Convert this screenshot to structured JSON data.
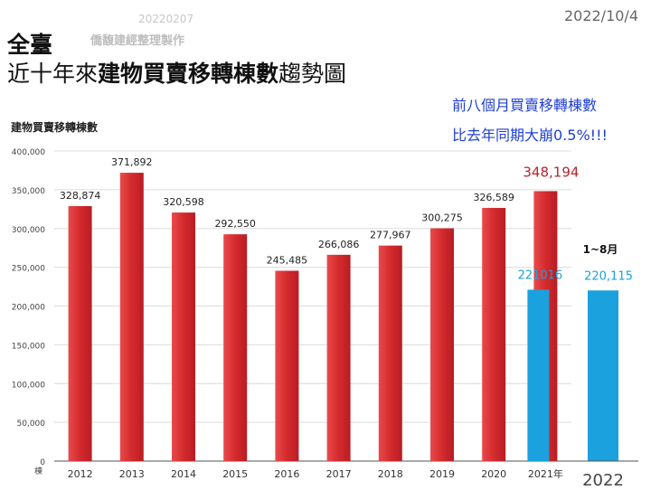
{
  "header": {
    "stamp": "20220207",
    "maker": "僑馥建經整理製作",
    "date": "2022/10/4",
    "title_line1": "全臺",
    "title_line2_a": "近十年來",
    "title_line2_b": "建物買賣移轉棟數",
    "title_line2_c": "趨勢圖"
  },
  "note": {
    "line1": "前八個月買賣移轉棟數",
    "line2": "比去年同期大崩0.5%!!!"
  },
  "colors": {
    "bar_red": "#d42a2d",
    "bar_blue": "#1aa1de",
    "highlight_label": "#b8232c",
    "blue_label": "#1aa1de"
  },
  "chart_data": {
    "type": "bar",
    "ylabel": "建物買賣移轉棟數",
    "unit_label": "棟",
    "ylim": [
      0,
      400000
    ],
    "yticks": [
      "0",
      "50,000",
      "100,000",
      "150,000",
      "200,000",
      "250,000",
      "300,000",
      "350,000",
      "400,000"
    ],
    "grid": true,
    "categories": [
      "2012",
      "2013",
      "2014",
      "2015",
      "2016",
      "2017",
      "2018",
      "2019",
      "2020",
      "2021年"
    ],
    "series": [
      {
        "values": [
          328874,
          371892,
          320598,
          292550,
          245485,
          266086,
          277967,
          300275,
          326589,
          348194
        ],
        "labels": [
          "328,874",
          "371,892",
          "320,598",
          "292,550",
          "245,485",
          "266,086",
          "277,967",
          "300,275",
          "326,589",
          "348,194"
        ]
      }
    ],
    "partial_2021": {
      "value": 221016,
      "label": "221016"
    },
    "year_2022": {
      "category": "2022",
      "period": "1~8月",
      "value": 220115,
      "label": "220,115"
    }
  }
}
